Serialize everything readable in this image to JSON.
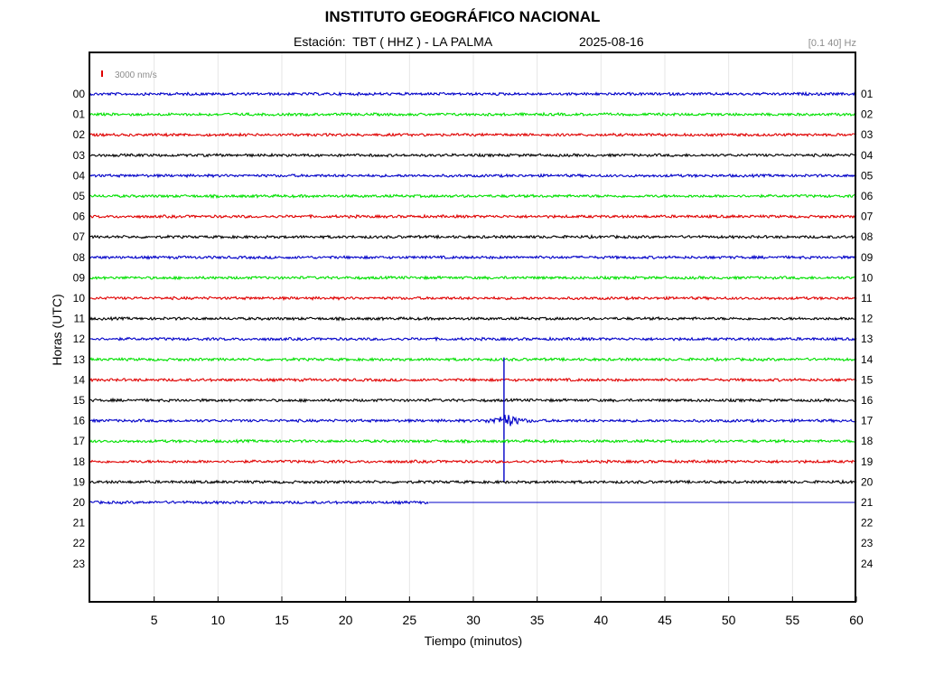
{
  "header": {
    "title": "INSTITUTO GEOGRÁFICO NACIONAL",
    "station": "Estación:  TBT ( HHZ ) - LA PALMA",
    "date": "2025-08-16",
    "filter": "[0.1 40] Hz"
  },
  "chart_data": {
    "type": "line",
    "xlabel": "Tiempo (minutos)",
    "ylabel": "Horas (UTC)",
    "xlim": [
      0,
      60
    ],
    "x_ticks": [
      5,
      10,
      15,
      20,
      25,
      30,
      35,
      40,
      45,
      50,
      55,
      60
    ],
    "left_labels": [
      "00",
      "01",
      "02",
      "03",
      "04",
      "05",
      "06",
      "07",
      "08",
      "09",
      "10",
      "11",
      "12",
      "13",
      "14",
      "15",
      "16",
      "17",
      "18",
      "19",
      "20",
      "21",
      "22",
      "23"
    ],
    "right_labels": [
      "01",
      "02",
      "03",
      "04",
      "05",
      "06",
      "07",
      "08",
      "09",
      "10",
      "11",
      "12",
      "13",
      "14",
      "15",
      "16",
      "17",
      "18",
      "19",
      "20",
      "21",
      "22",
      "23",
      "24"
    ],
    "scale_label": "3000 nm/s",
    "scale_color": "#e00000",
    "trace_colors": [
      "#0000c8",
      "#00e000",
      "#e00000",
      "#000000"
    ],
    "grid": true,
    "traces": [
      {
        "hour": "00",
        "color": "#0000c8",
        "end_minute": 60
      },
      {
        "hour": "01",
        "color": "#00e000",
        "end_minute": 60
      },
      {
        "hour": "02",
        "color": "#e00000",
        "end_minute": 60
      },
      {
        "hour": "03",
        "color": "#000000",
        "end_minute": 60
      },
      {
        "hour": "04",
        "color": "#0000c8",
        "end_minute": 60
      },
      {
        "hour": "05",
        "color": "#00e000",
        "end_minute": 60
      },
      {
        "hour": "06",
        "color": "#e00000",
        "end_minute": 60
      },
      {
        "hour": "07",
        "color": "#000000",
        "end_minute": 60
      },
      {
        "hour": "08",
        "color": "#0000c8",
        "end_minute": 60
      },
      {
        "hour": "09",
        "color": "#00e000",
        "end_minute": 60
      },
      {
        "hour": "10",
        "color": "#e00000",
        "end_minute": 60
      },
      {
        "hour": "11",
        "color": "#000000",
        "end_minute": 60
      },
      {
        "hour": "12",
        "color": "#0000c8",
        "end_minute": 60
      },
      {
        "hour": "13",
        "color": "#00e000",
        "end_minute": 60
      },
      {
        "hour": "14",
        "color": "#e00000",
        "end_minute": 60
      },
      {
        "hour": "15",
        "color": "#000000",
        "end_minute": 60
      },
      {
        "hour": "16",
        "color": "#0000c8",
        "end_minute": 60
      },
      {
        "hour": "17",
        "color": "#00e000",
        "end_minute": 60
      },
      {
        "hour": "18",
        "color": "#e00000",
        "end_minute": 60
      },
      {
        "hour": "19",
        "color": "#000000",
        "end_minute": 60
      },
      {
        "hour": "20",
        "color": "#0000c8",
        "end_minute": 26.5
      }
    ],
    "events": [
      {
        "hour": "16",
        "minute": 32.4
      }
    ]
  }
}
